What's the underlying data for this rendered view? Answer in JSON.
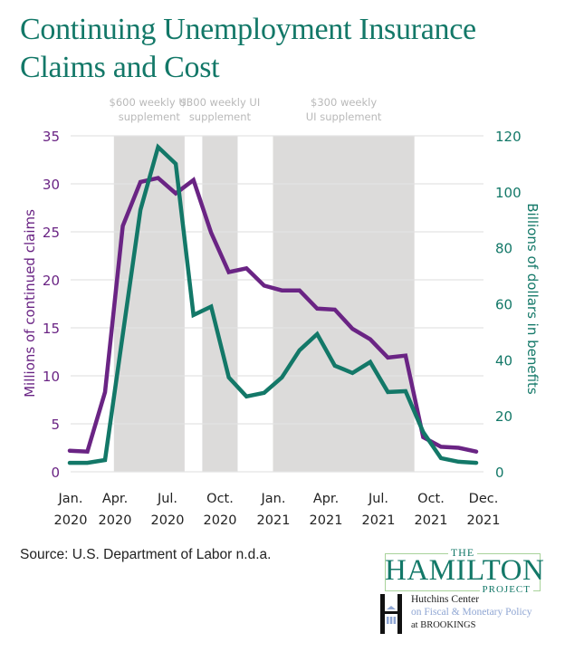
{
  "header": {
    "title_line1": "Continuing Unemployment Insurance",
    "title_line2": "Claims and Cost"
  },
  "colors": {
    "claims": "#6a2484",
    "benefits": "#137868",
    "band": "#dcdbda",
    "grid": "#e3e3e3",
    "annotation": "#b9b9b9"
  },
  "chart_data": {
    "type": "line",
    "title": "Continuing Unemployment Insurance Claims and Cost",
    "x": [
      "Jan. 2020",
      "Feb. 2020",
      "Mar. 2020",
      "Apr. 2020",
      "May 2020",
      "Jun. 2020",
      "Jul. 2020",
      "Aug. 2020",
      "Sep. 2020",
      "Oct. 2020",
      "Nov. 2020",
      "Dec. 2020",
      "Jan. 2021",
      "Feb. 2021",
      "Mar. 2021",
      "Apr. 2021",
      "May 2021",
      "Jun. 2021",
      "Jul. 2021",
      "Aug. 2021",
      "Sep. 2021",
      "Oct. 2021",
      "Nov. 2021",
      "Dec. 2021"
    ],
    "x_tick_labels": [
      {
        "line1": "Jan.",
        "line2": "2020"
      },
      {
        "line1": "Apr.",
        "line2": "2020"
      },
      {
        "line1": "Jul.",
        "line2": "2020"
      },
      {
        "line1": "Oct.",
        "line2": "2020"
      },
      {
        "line1": "Jan.",
        "line2": "2021"
      },
      {
        "line1": "Apr.",
        "line2": "2021"
      },
      {
        "line1": "Jul.",
        "line2": "2021"
      },
      {
        "line1": "Oct.",
        "line2": "2021"
      },
      {
        "line1": "Dec.",
        "line2": "2021"
      }
    ],
    "x_tick_month_index": [
      0,
      2.5,
      5.5,
      8.5,
      11.5,
      14.5,
      17.5,
      20.5,
      23
    ],
    "series": [
      {
        "name": "Millions of continued claims",
        "axis": "left",
        "values": [
          2.2,
          2.1,
          8.3,
          25.6,
          30.2,
          30.6,
          29.0,
          30.4,
          24.9,
          20.8,
          21.2,
          19.4,
          18.9,
          18.9,
          17.0,
          16.9,
          14.9,
          13.8,
          11.9,
          12.1,
          3.6,
          2.6,
          2.5,
          2.1
        ]
      },
      {
        "name": "Billions of dollars in benefits",
        "axis": "right",
        "values": [
          3.2,
          3.2,
          4.2,
          49,
          93.5,
          116,
          110,
          56,
          59,
          33.7,
          26.9,
          28.2,
          33.7,
          43.4,
          49.2,
          37.9,
          35.3,
          39.2,
          28.5,
          28.8,
          14.2,
          4.9,
          3.6,
          3.2
        ]
      }
    ],
    "ylabel": "Millions of continued claims",
    "ylim": [
      0,
      35
    ],
    "yticks": [
      0,
      5,
      10,
      15,
      20,
      25,
      30,
      35
    ],
    "y2label": "Billions of dollars in benefits",
    "y2lim": [
      0,
      120
    ],
    "y2ticks": [
      0,
      20,
      40,
      60,
      80,
      100,
      120
    ],
    "grid": true,
    "shaded_periods": [
      {
        "start_month_index": 2.5,
        "end_month_index": 6.5,
        "label_line1": "$600 weekly UI",
        "label_line2": "supplement"
      },
      {
        "start_month_index": 7.5,
        "end_month_index": 9.5,
        "label_line1": "$300 weekly UI",
        "label_line2": "supplement"
      },
      {
        "start_month_index": 11.5,
        "end_month_index": 19.5,
        "label_line1": "$300 weekly",
        "label_line2": "UI supplement"
      }
    ]
  },
  "footer": {
    "source": "Source: U.S. Department of Labor n.d.a.",
    "hamilton_the": "THE",
    "hamilton_name": "HAMILTON",
    "hamilton_project": "PROJECT",
    "hutchins_line1": "Hutchins Center",
    "hutchins_line2": "on Fiscal & Monetary Policy",
    "hutchins_line3": "at BROOKINGS"
  }
}
